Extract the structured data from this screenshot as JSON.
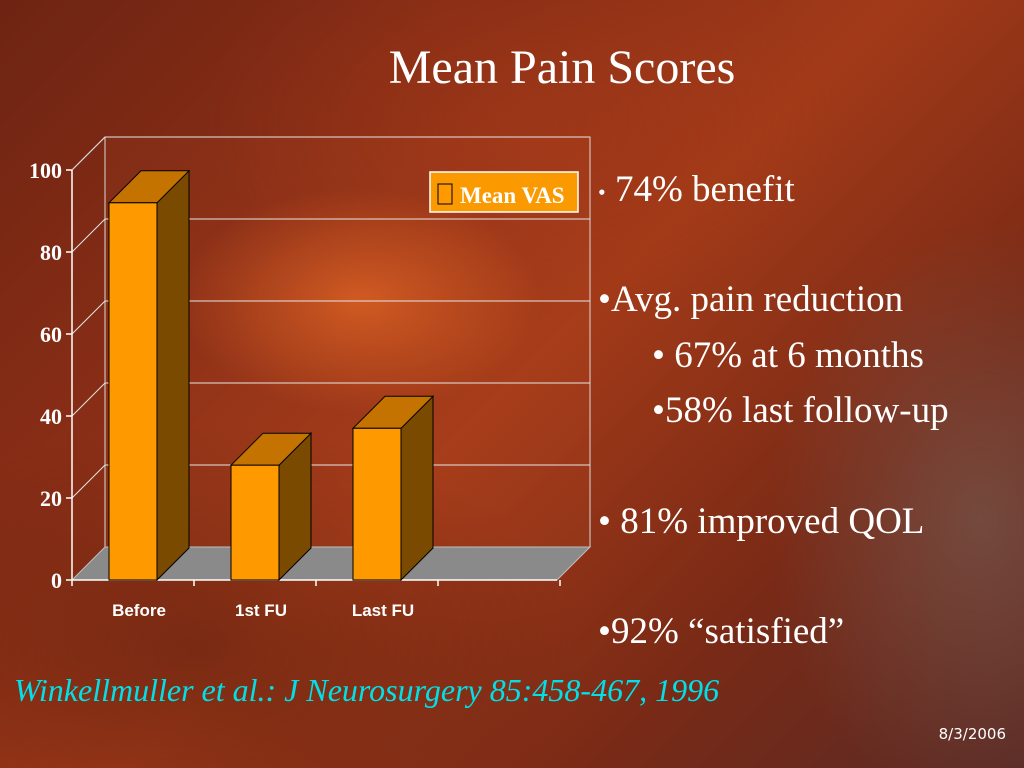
{
  "slide": {
    "title": "Mean Pain Scores",
    "citation": "Winkellmuller et al.: J Neurosurgery 85:458-467, 1996",
    "date": "8/3/2006"
  },
  "bullets": [
    {
      "marker": "•",
      "text": " 74% benefit"
    },
    {
      "marker": "•",
      "text": "Avg. pain reduction"
    },
    {
      "marker": "•",
      "text": " 67% at 6 months"
    },
    {
      "marker": "•",
      "text": "58% last follow-up"
    },
    {
      "marker": "•",
      "text": " 81% improved QOL"
    },
    {
      "marker": "•",
      "text": "92% “satisfied”"
    }
  ],
  "colors": {
    "bar_front": "#ff9900",
    "bar_top": "#c47300",
    "bar_side": "#7a4a00",
    "floor": "#8a8a8a",
    "citation": "#00e0e8"
  },
  "chart_data": {
    "type": "bar",
    "categories": [
      "Before",
      "1st FU",
      "Last FU"
    ],
    "series": [
      {
        "name": "Mean VAS",
        "values": [
          92,
          28,
          37
        ]
      }
    ],
    "ylim": [
      0,
      100
    ],
    "yticks": [
      "0",
      "20",
      "40",
      "60",
      "80",
      "100"
    ],
    "grid": true,
    "legend": "top-right",
    "three_d": true
  }
}
